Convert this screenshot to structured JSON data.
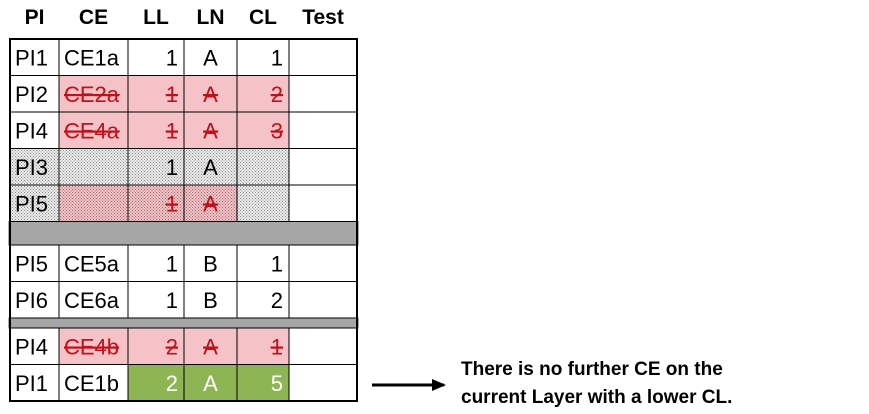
{
  "table": {
    "headers": [
      "PI",
      "CE",
      "LL",
      "LN",
      "CL",
      "Test"
    ],
    "groups": [
      [
        {
          "cells": [
            "PI1",
            "CE1a",
            "1",
            "A",
            "1",
            ""
          ],
          "style": "normal"
        },
        {
          "cells": [
            "PI2",
            "CE2a",
            "1",
            "A",
            "2",
            ""
          ],
          "style": "struck"
        },
        {
          "cells": [
            "PI4",
            "CE4a",
            "1",
            "A",
            "3",
            ""
          ],
          "style": "struck"
        },
        {
          "cells": [
            "PI3",
            "",
            "1",
            "A",
            "",
            ""
          ],
          "style": "dotted"
        },
        {
          "cells": [
            "PI5",
            "",
            "1",
            "A",
            "",
            ""
          ],
          "style": "dotted-struck"
        }
      ],
      [
        {
          "cells": [
            "PI5",
            "CE5a",
            "1",
            "B",
            "1",
            ""
          ],
          "style": "normal"
        },
        {
          "cells": [
            "PI6",
            "CE6a",
            "1",
            "B",
            "2",
            ""
          ],
          "style": "normal"
        }
      ],
      [
        {
          "cells": [
            "PI4",
            "CE4b",
            "2",
            "A",
            "1",
            ""
          ],
          "style": "struck"
        },
        {
          "cells": [
            "PI1",
            "CE1b",
            "2",
            "A",
            "5",
            ""
          ],
          "style": "highlight"
        }
      ]
    ]
  },
  "colors": {
    "struck_fill": "#f5c2c7",
    "struck_text": "#c0101a",
    "highlight_fill": "#8db553",
    "highlight_text": "#ffffff",
    "dotted_fill": "#e6e6e6",
    "separator": "#a6a6a6"
  },
  "annotation": {
    "line1": "There is no further CE on the",
    "line2": "current Layer with a lower CL.",
    "icon": "right-arrow-icon"
  }
}
